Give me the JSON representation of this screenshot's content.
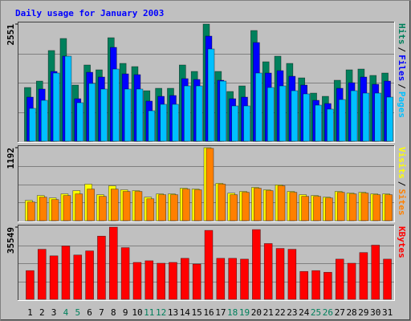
{
  "chart_data": [
    {
      "type": "bar",
      "title": "Daily usage for January 2003",
      "separator": "/",
      "ylim": [
        0,
        2551
      ],
      "yticks": [
        2551
      ],
      "series": [
        {
          "name": "Hits",
          "color": "#00805c",
          "values": [
            1170,
            1310,
            1975,
            2237,
            1223,
            1660,
            1555,
            2254,
            1695,
            1625,
            1100,
            1153,
            1153,
            1660,
            1520,
            2551,
            1520,
            1083,
            1205,
            2411,
            1730,
            1852,
            1695,
            1380,
            1048,
            978,
            1328,
            1555,
            1572,
            1433,
            1485
          ]
        },
        {
          "name": "Files",
          "color": "#0000ff",
          "values": [
            961,
            1136,
            1520,
            1852,
            926,
            1502,
            1398,
            2044,
            1467,
            1450,
            874,
            978,
            996,
            1363,
            1345,
            2289,
            1328,
            926,
            961,
            2149,
            1485,
            1537,
            1415,
            1223,
            891,
            821,
            1153,
            1275,
            1398,
            1240,
            1310
          ]
        },
        {
          "name": "Pages",
          "color": "#00c0ff",
          "values": [
            716,
            891,
            1485,
            1852,
            839,
            1258,
            1136,
            1572,
            1136,
            1136,
            664,
            804,
            804,
            1205,
            1205,
            2009,
            1310,
            769,
            769,
            1485,
            1170,
            1205,
            1100,
            1031,
            786,
            699,
            908,
            1100,
            1048,
            1048,
            961
          ]
        }
      ]
    },
    {
      "type": "bar",
      "separator": "/",
      "ylim": [
        0,
        1192
      ],
      "yticks": [
        1192
      ],
      "series": [
        {
          "name": "Visits",
          "color": "#ffff00",
          "values": [
            331,
            410,
            371,
            437,
            490,
            596,
            424,
            569,
            503,
            490,
            384,
            437,
            437,
            530,
            516,
            1192,
            609,
            450,
            477,
            543,
            503,
            583,
            477,
            424,
            410,
            384,
            477,
            450,
            463,
            437,
            437
          ]
        },
        {
          "name": "Sites",
          "color": "#ff8000",
          "values": [
            305,
            384,
            344,
            410,
            437,
            516,
            397,
            516,
            477,
            477,
            357,
            424,
            424,
            516,
            503,
            1180,
            596,
            424,
            463,
            530,
            490,
            569,
            463,
            397,
            397,
            371,
            463,
            437,
            450,
            424,
            424
          ]
        }
      ]
    },
    {
      "type": "bar",
      "ylim": [
        0,
        35549
      ],
      "yticks": [
        35549
      ],
      "categories": [
        "1",
        "2",
        "3",
        "4",
        "5",
        "6",
        "7",
        "8",
        "9",
        "10",
        "11",
        "12",
        "13",
        "14",
        "15",
        "16",
        "17",
        "18",
        "19",
        "20",
        "21",
        "22",
        "23",
        "24",
        "25",
        "26",
        "27",
        "28",
        "29",
        "30",
        "31"
      ],
      "weekend_indices": [
        3,
        4,
        10,
        11,
        17,
        18,
        24,
        25
      ],
      "weekend_color": "#00805c",
      "series": [
        {
          "name": "KBytes",
          "color": "#ff0000",
          "values": [
            14140,
            24650,
            21410,
            26260,
            21820,
            23840,
            31110,
            35549,
            25450,
            18180,
            18990,
            17780,
            18180,
            20200,
            17370,
            33940,
            20200,
            20200,
            19800,
            34340,
            27470,
            25050,
            24650,
            13740,
            14140,
            13330,
            19800,
            17780,
            23030,
            26670,
            19800
          ]
        }
      ]
    }
  ]
}
